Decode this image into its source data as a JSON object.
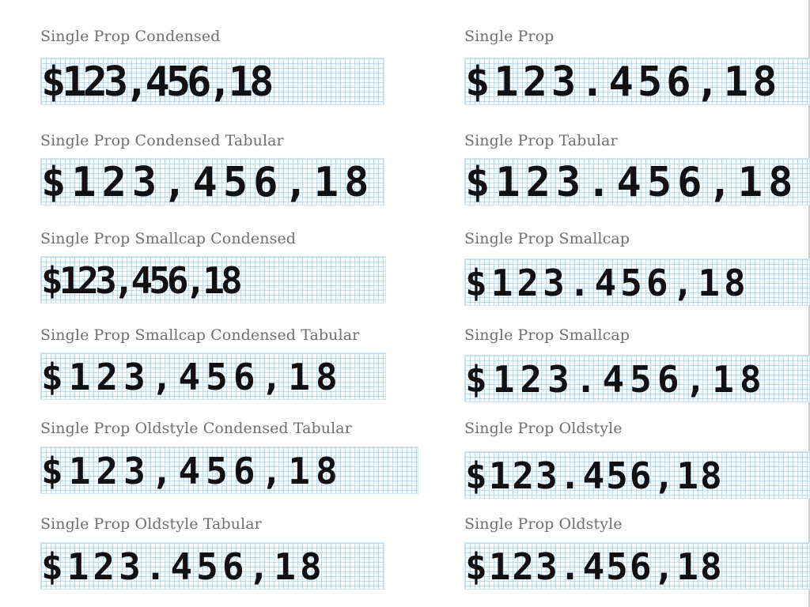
{
  "specimens": [
    {
      "label": "Single Prop Condensed",
      "sample": "$123,456,18"
    },
    {
      "label": "Single Prop",
      "sample": "$123.456,18"
    },
    {
      "label": "Single Prop Condensed Tabular",
      "sample": "$123,456,18"
    },
    {
      "label": "Single Prop Tabular",
      "sample": "$123.456,18"
    },
    {
      "label": "Single Prop Smallcap Condensed",
      "sample": "$123,456,18"
    },
    {
      "label": "Single Prop Smallcap",
      "sample": "$123.456,18"
    },
    {
      "label": "Single Prop Smallcap Condensed Tabular",
      "sample": "$123,456,18"
    },
    {
      "label": "Single Prop Smallcap",
      "sample": "$123.456,18"
    },
    {
      "label": "Single Prop Oldstyle Condensed Tabular",
      "sample": "$123,456,18"
    },
    {
      "label": "Single Prop Oldstyle",
      "sample": "$123.456,18"
    },
    {
      "label": "Single Prop Oldstyle Tabular",
      "sample": "$123.456,18"
    },
    {
      "label": "Single Prop Oldstyle",
      "sample": "$123.456,18"
    }
  ]
}
